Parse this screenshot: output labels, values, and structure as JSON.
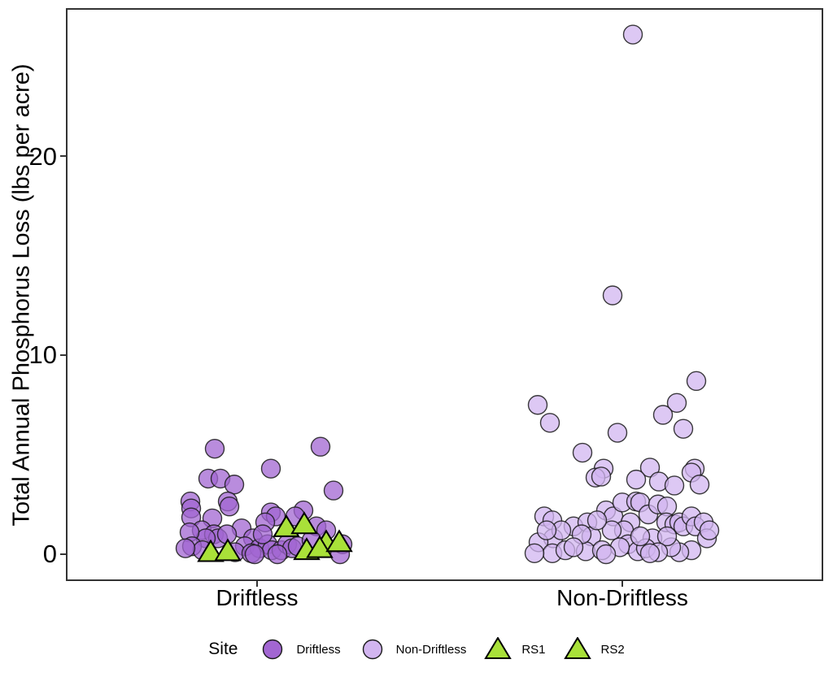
{
  "colors": {
    "driftless_fill": "#a266d2",
    "non_driftless_fill": "#d2b5f0",
    "rs_fill": "#a9e139",
    "point_stroke": "#1a1a1a",
    "axis": "#333333"
  },
  "chart_data": {
    "type": "scatter",
    "subtype": "jittered-categorical",
    "title": "",
    "xlabel": "",
    "ylabel": "Total Annual Phosphorus Loss (lbs per acre)",
    "categories": [
      "Driftless",
      "Non-Driftless"
    ],
    "ylim": [
      -0.6,
      27.4
    ],
    "yticks": [
      0,
      10,
      20
    ],
    "ytick_labels": [
      "0",
      "10",
      "20"
    ],
    "grid": false,
    "legend_position": "bottom",
    "legend_title": "Site",
    "series": [
      {
        "name": "Driftless",
        "category": "Driftless",
        "marker": "circle",
        "fill": "#a266d2",
        "points": [
          [
            -52,
            5.3
          ],
          [
            78,
            5.4
          ],
          [
            17,
            4.3
          ],
          [
            -60,
            3.8
          ],
          [
            -45,
            3.8
          ],
          [
            -28,
            3.5
          ],
          [
            94,
            3.2
          ],
          [
            -82,
            2.65
          ],
          [
            -36,
            2.65
          ],
          [
            -81,
            2.3
          ],
          [
            -34,
            2.4
          ],
          [
            -81,
            1.85
          ],
          [
            -55,
            1.8
          ],
          [
            57,
            2.2
          ],
          [
            17,
            2.1
          ],
          [
            23,
            1.9
          ],
          [
            47,
            1.9
          ],
          [
            -19,
            1.3
          ],
          [
            -68,
            1.2
          ],
          [
            10,
            1.6
          ],
          [
            73,
            1.4
          ],
          [
            85,
            1.2
          ],
          [
            -53,
            1.0
          ],
          [
            -5,
            0.8
          ],
          [
            -48,
            0.8
          ],
          [
            -37,
            1.0
          ],
          [
            -63,
            0.8
          ],
          [
            -83,
            1.1
          ],
          [
            -80,
            0.4
          ],
          [
            -67,
            0.2
          ],
          [
            -15,
            0.4
          ],
          [
            3,
            0.3
          ],
          [
            13,
            0.5
          ],
          [
            18,
            0.2
          ],
          [
            30,
            0.2
          ],
          [
            37,
            0.5
          ],
          [
            43,
            0.3
          ],
          [
            50,
            0.4
          ],
          [
            67,
            0.7
          ],
          [
            105,
            0.5
          ],
          [
            102,
            0.0
          ],
          [
            -88,
            0.3
          ],
          [
            -27,
            0.1
          ],
          [
            -7,
            0.05
          ],
          [
            25,
            0.0
          ],
          [
            7,
            1.0
          ],
          [
            -3,
            0.0
          ]
        ]
      },
      {
        "name": "Non-Driftless",
        "category": "Non-Driftless",
        "marker": "circle",
        "fill": "#d2b5f0",
        "points": [
          [
            13,
            26.1
          ],
          [
            -12,
            13.0
          ],
          [
            91,
            8.7
          ],
          [
            67,
            7.6
          ],
          [
            -104,
            7.5
          ],
          [
            50,
            7.0
          ],
          [
            -89,
            6.6
          ],
          [
            75,
            6.3
          ],
          [
            -6,
            6.1
          ],
          [
            -49,
            5.1
          ],
          [
            34,
            4.35
          ],
          [
            -23,
            4.3
          ],
          [
            89,
            4.3
          ],
          [
            17,
            3.75
          ],
          [
            45,
            3.65
          ],
          [
            64,
            3.45
          ],
          [
            85,
            4.1
          ],
          [
            95,
            3.5
          ],
          [
            -33,
            3.85
          ],
          [
            -26,
            3.9
          ],
          [
            -96,
            1.9
          ],
          [
            -86,
            1.7
          ],
          [
            -85,
            0.8
          ],
          [
            -103,
            0.6
          ],
          [
            -86,
            0.05
          ],
          [
            -70,
            0.2
          ],
          [
            -60,
            1.4
          ],
          [
            -43,
            1.6
          ],
          [
            -38,
            0.9
          ],
          [
            -45,
            0.15
          ],
          [
            -25,
            0.2
          ],
          [
            -20,
            2.2
          ],
          [
            -11,
            1.9
          ],
          [
            0,
            2.6
          ],
          [
            17,
            2.65
          ],
          [
            22,
            2.6
          ],
          [
            10,
            1.6
          ],
          [
            2,
            1.2
          ],
          [
            7,
            0.5
          ],
          [
            19,
            0.15
          ],
          [
            32,
            2.0
          ],
          [
            37,
            0.8
          ],
          [
            29,
            0.3
          ],
          [
            44,
            2.5
          ],
          [
            55,
            2.4
          ],
          [
            54,
            1.6
          ],
          [
            64,
            1.5
          ],
          [
            70,
            1.6
          ],
          [
            75,
            1.4
          ],
          [
            85,
            1.9
          ],
          [
            90,
            1.4
          ],
          [
            100,
            1.6
          ],
          [
            104,
            0.8
          ],
          [
            85,
            0.2
          ],
          [
            70,
            0.1
          ],
          [
            60,
            0.35
          ],
          [
            55,
            0.9
          ],
          [
            44,
            0.1
          ],
          [
            34,
            0.05
          ],
          [
            22,
            0.9
          ],
          [
            -13,
            1.2
          ],
          [
            -3,
            0.35
          ],
          [
            -20,
            0.0
          ],
          [
            -31,
            1.7
          ],
          [
            -50,
            1.0
          ],
          [
            -60,
            0.35
          ],
          [
            -75,
            1.2
          ],
          [
            -93,
            1.2
          ],
          [
            -108,
            0.05
          ],
          [
            107,
            1.2
          ]
        ]
      },
      {
        "name": "RS1",
        "category": "Driftless",
        "marker": "triangle",
        "fill": "#a9e139",
        "points": [
          [
            -57,
            0.1
          ],
          [
            36,
            1.35
          ],
          [
            61,
            0.2
          ],
          [
            85,
            0.6
          ]
        ]
      },
      {
        "name": "RS2",
        "category": "Driftless",
        "marker": "triangle",
        "fill": "#a9e139",
        "points": [
          [
            -36,
            0.15
          ],
          [
            58,
            1.5
          ],
          [
            77,
            0.3
          ],
          [
            101,
            0.6
          ]
        ]
      }
    ]
  }
}
